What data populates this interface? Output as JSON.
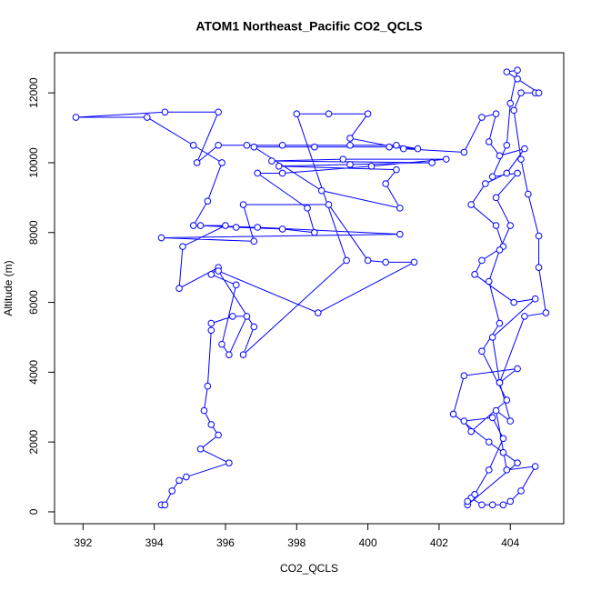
{
  "chart_data": {
    "type": "line",
    "title": "ATOM1 Northeast_Pacific CO2_QCLS",
    "x_label": "CO2_QCLS",
    "y_label": "Altitude (m)",
    "color": "#0000ff",
    "xlim": [
      391.2,
      405.5
    ],
    "ylim": [
      -340,
      13150
    ],
    "xticks": [
      392,
      394,
      396,
      398,
      400,
      402,
      404
    ],
    "yticks": [
      0,
      2000,
      4000,
      6000,
      8000,
      10000,
      12000
    ],
    "x": [
      394.2,
      394.3,
      394.5,
      394.7,
      394.9,
      396.1,
      395.3,
      395.8,
      395.6,
      395.4,
      395.5,
      395.6,
      395.6,
      396.2,
      396.6,
      396.1,
      395.9,
      396.3,
      395.6,
      395.8,
      394.7,
      394.8,
      396.0,
      395.1,
      395.5,
      395.9,
      395.1,
      393.8,
      391.8,
      394.3,
      395.8,
      395.2,
      395.8,
      396.6,
      397.6,
      399.5,
      400.8,
      401.4,
      400.6,
      398.5,
      396.8,
      398.7,
      400.9,
      400.5,
      400.8,
      397.5,
      399.5,
      401.8,
      397.3,
      399.3,
      402.2,
      400.1,
      397.6,
      396.9,
      398.3,
      398.5,
      397.6,
      396.3,
      395.3,
      396.9,
      400.9,
      394.2,
      396.8,
      396.5,
      398.9,
      400.0,
      400.5,
      401.3,
      398.6,
      395.8,
      396.8,
      396.5,
      399.4,
      398.0,
      398.9,
      400.0,
      399.5,
      401.0,
      402.7,
      403.2,
      403.6,
      403.4,
      403.7,
      404.4,
      403.9,
      403.3,
      402.9,
      403.6,
      403.8,
      403.2,
      403.0,
      404.1,
      404.7,
      403.5,
      403.7,
      404.2,
      402.7,
      402.4,
      403.4,
      403.8,
      404.2,
      402.8,
      402.9,
      403.2,
      403.5,
      403.8,
      404.0,
      404.3,
      404.7,
      403.9,
      403.6,
      404.0,
      403.7,
      404.4,
      405.0,
      404.8,
      404.8,
      404.5,
      404.3,
      404.1,
      404.3,
      404.7,
      404.8,
      404.2,
      403.9,
      404.2,
      404.0,
      403.9,
      403.5,
      404.2,
      403.6,
      404.0,
      403.7,
      403.4,
      403.7,
      403.2,
      403.9,
      402.9,
      402.7,
      403.5,
      403.8,
      403.4,
      403.0,
      402.8
    ],
    "values": [
      200,
      200,
      600,
      900,
      1000,
      1400,
      1800,
      2200,
      2500,
      2900,
      3600,
      5200,
      5400,
      5600,
      5600,
      4500,
      4800,
      6500,
      6800,
      7000,
      6400,
      7600,
      8200,
      8200,
      8900,
      10000,
      10500,
      11300,
      11300,
      11450,
      11450,
      10000,
      10500,
      10500,
      10500,
      10500,
      10500,
      10400,
      10450,
      10450,
      10450,
      9200,
      8700,
      9400,
      9800,
      9900,
      9950,
      10000,
      10050,
      10100,
      10100,
      9900,
      9700,
      9700,
      8700,
      8000,
      8100,
      8150,
      8200,
      8150,
      7950,
      7850,
      7750,
      8800,
      8800,
      7200,
      7150,
      7150,
      5700,
      6900,
      5300,
      4500,
      7200,
      11400,
      11400,
      11400,
      10700,
      10400,
      10300,
      11300,
      11400,
      10600,
      10200,
      10400,
      9700,
      9400,
      8800,
      8200,
      7600,
      7200,
      6800,
      6000,
      6100,
      5000,
      3700,
      4100,
      3900,
      2800,
      2000,
      1700,
      1400,
      200,
      400,
      200,
      200,
      200,
      300,
      600,
      1300,
      1200,
      2900,
      2600,
      3700,
      5600,
      5700,
      7000,
      7900,
      9100,
      10100,
      11500,
      12000,
      12000,
      12000,
      12400,
      12600,
      12650,
      11700,
      10500,
      9600,
      9700,
      9000,
      8200,
      7500,
      6600,
      5400,
      4600,
      3200,
      2300,
      2600,
      2700,
      2100,
      1200,
      500,
      300
    ]
  }
}
